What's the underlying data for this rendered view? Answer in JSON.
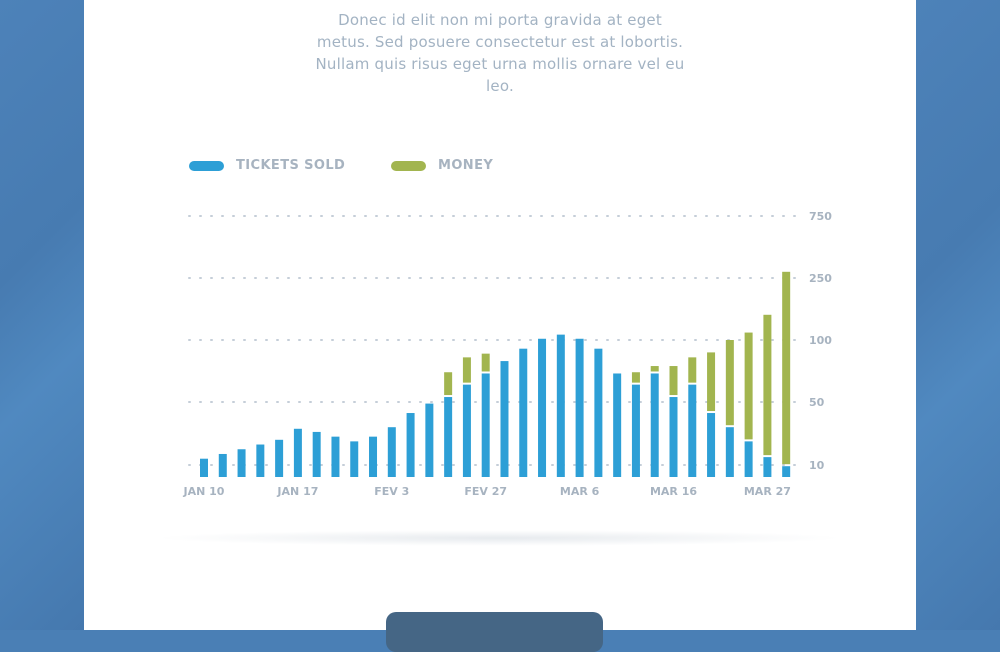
{
  "intro_text": "Donec id elit non mi porta gravida at eget metus. Sed posuere consectetur est at lobortis. Nullam quis risus eget urna mollis ornare vel eu leo.",
  "colors": {
    "tickets": "#2d9fd6",
    "money": "#a2b54f",
    "grid": "#c5ced8",
    "label": "#a7b3c0",
    "background": "#4a7fb5",
    "button": "#456685"
  },
  "chart_data": {
    "type": "bar",
    "stacked": true,
    "y_scale": "non-linear (piecewise)",
    "y_ticks": [
      "10",
      "50",
      "100",
      "250",
      "750"
    ],
    "x_tick_labels": [
      "JAN 10",
      "JAN 17",
      "FEV 3",
      "FEV 27",
      "MAR 6",
      "MAR 16",
      "MAR 27"
    ],
    "legend": [
      {
        "name": "TICKETS SOLD",
        "color": "#2d9fd6"
      },
      {
        "name": "MONEY",
        "color": "#a2b54f"
      }
    ],
    "legend_position": "top-left",
    "grid": "dotted horizontal",
    "series": [
      {
        "name": "TICKETS SOLD",
        "values": [
          14,
          17,
          20,
          23,
          26,
          33,
          31,
          28,
          25,
          28,
          34,
          43,
          49,
          54,
          64,
          73,
          83,
          93,
          103,
          113,
          103,
          93,
          73,
          64,
          73,
          54,
          64,
          43,
          34,
          25,
          15,
          9
        ]
      },
      {
        "name": "MONEY",
        "values": [
          0,
          0,
          0,
          0,
          0,
          0,
          0,
          0,
          0,
          0,
          0,
          0,
          0,
          20,
          22,
          16,
          0,
          0,
          0,
          0,
          0,
          0,
          0,
          10,
          6,
          25,
          22,
          47,
          66,
          93,
          146,
          291
        ]
      }
    ]
  }
}
